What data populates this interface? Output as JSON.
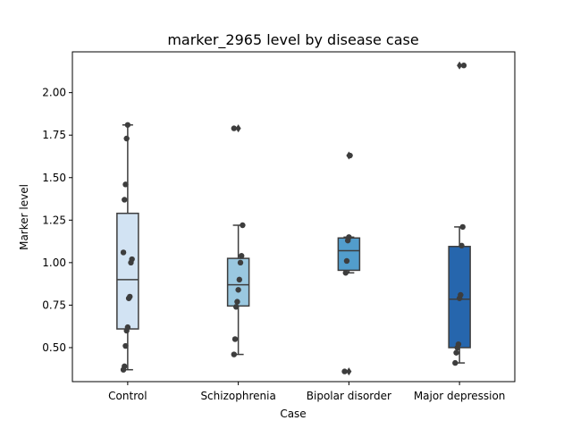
{
  "chart_data": {
    "type": "box",
    "title": "marker_2965 level by disease case",
    "xlabel": "Case",
    "ylabel": "Marker level",
    "ylim": [
      0.3,
      2.24
    ],
    "yticks": [
      0.5,
      0.75,
      1.0,
      1.25,
      1.5,
      1.75,
      2.0
    ],
    "ytick_labels": [
      "0.50",
      "0.75",
      "1.00",
      "1.25",
      "1.50",
      "1.75",
      "2.00"
    ],
    "grid": false,
    "categories": [
      "Control",
      "Schizophrenia",
      "Bipolar disorder",
      "Major depression"
    ],
    "colors": [
      "#d2e3f3",
      "#9ac8e0",
      "#529dcc",
      "#2666ad"
    ],
    "boxes": [
      {
        "category": "Control",
        "whisker_low": 0.37,
        "q1": 0.61,
        "median": 0.9,
        "q3": 1.29,
        "whisker_high": 1.81,
        "outliers": []
      },
      {
        "category": "Schizophrenia",
        "whisker_low": 0.46,
        "q1": 0.745,
        "median": 0.87,
        "q3": 1.025,
        "whisker_high": 1.22,
        "outliers": [
          1.79
        ]
      },
      {
        "category": "Bipolar disorder",
        "whisker_low": 0.94,
        "q1": 0.955,
        "median": 1.07,
        "q3": 1.145,
        "whisker_high": 1.15,
        "outliers": [
          1.63,
          0.36
        ]
      },
      {
        "category": "Major depression",
        "whisker_low": 0.41,
        "q1": 0.5,
        "median": 0.785,
        "q3": 1.095,
        "whisker_high": 1.21,
        "outliers": [
          2.16
        ]
      }
    ],
    "points": [
      [
        0.37,
        0.39,
        0.51,
        0.6,
        0.62,
        0.79,
        0.8,
        1.0,
        1.02,
        1.06,
        1.37,
        1.46,
        1.73,
        1.81
      ],
      [
        0.46,
        0.55,
        0.74,
        0.77,
        0.84,
        0.9,
        1.0,
        1.04,
        1.22,
        1.79
      ],
      [
        0.36,
        0.94,
        1.01,
        1.13,
        1.15,
        1.63
      ],
      [
        0.41,
        0.47,
        0.5,
        0.52,
        0.79,
        0.81,
        1.1,
        1.21,
        2.16
      ]
    ]
  }
}
